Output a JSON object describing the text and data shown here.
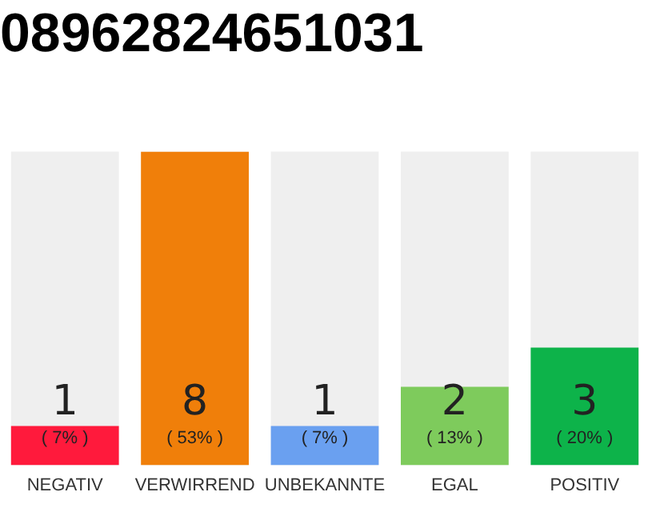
{
  "chart_data": {
    "type": "bar",
    "title": "08962824651031",
    "categories": [
      "NEGATIV",
      "VERWIRREND",
      "UNBEKANNTE",
      "EGAL",
      "POSITIV"
    ],
    "values": [
      1,
      8,
      1,
      2,
      3
    ],
    "colors": [
      "#ff1a3c",
      "#f07f0a",
      "#6aa0f0",
      "#7ecb5c",
      "#0db34a"
    ],
    "data_labels": true,
    "annotations": [
      "( 7% )",
      "( 53% )",
      "( 7% )",
      "( 13% )",
      "( 20% )"
    ],
    "grid": false,
    "legend": false
  }
}
